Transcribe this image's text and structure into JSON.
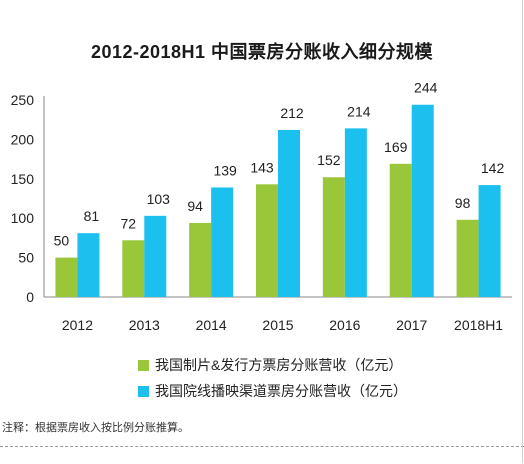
{
  "chart_data": {
    "type": "bar",
    "title": "2012-2018H1 中国票房分账收入细分规模",
    "categories": [
      "2012",
      "2013",
      "2014",
      "2015",
      "2016",
      "2017",
      "2018H1"
    ],
    "series": [
      {
        "name": "我国制片&发行方票房分账营收（亿元）",
        "color": "#9ac73a",
        "values": [
          50,
          72,
          94,
          143,
          152,
          169,
          98
        ]
      },
      {
        "name": "我国院线播映渠道票房分账营收（亿元）",
        "color": "#1bc0ee",
        "values": [
          81,
          103,
          139,
          212,
          214,
          244,
          142
        ]
      }
    ],
    "ylim": [
      0,
      250
    ],
    "yticks": [
      "0",
      "50",
      "100",
      "150",
      "200",
      "250"
    ],
    "xlabel": "",
    "ylabel": "",
    "grid": false,
    "legend_position": "bottom"
  },
  "note": "注释：根据票房收入按比例分账推算。"
}
